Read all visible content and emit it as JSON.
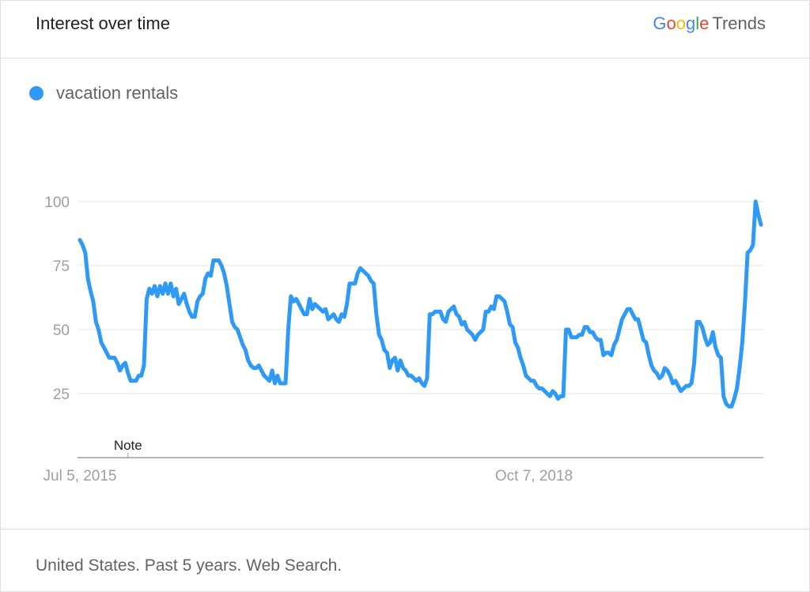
{
  "header": {
    "title": "Interest over time",
    "brand": {
      "google": [
        "G",
        "o",
        "o",
        "g",
        "l",
        "e"
      ],
      "product": "Trends"
    }
  },
  "legend": {
    "label": "vacation rentals"
  },
  "colors": {
    "series": "#2F9AF5",
    "grid": "#e6e6e6",
    "axis": "#9e9e9e",
    "tick_text": "#9e9e9e"
  },
  "chart_data": {
    "type": "line",
    "title": "Interest over time",
    "xlabel": "",
    "ylabel": "",
    "ylim": [
      0,
      100
    ],
    "yticks": [
      25,
      50,
      75,
      100
    ],
    "grid": true,
    "legend_placement": "top-left",
    "x_tick_labels": [
      {
        "label": "Jul 5, 2015",
        "index": 0
      },
      {
        "label": "Oct 7, 2018",
        "index": 170
      }
    ],
    "annotations": [
      {
        "label": "Note",
        "index": 18
      }
    ],
    "series": [
      {
        "name": "vacation rentals",
        "values": [
          85,
          83,
          80,
          70,
          65,
          61,
          53,
          50,
          45,
          43,
          41,
          39,
          39,
          39,
          37,
          34,
          36,
          37,
          33,
          30,
          30,
          30,
          32,
          32,
          36,
          62,
          66,
          64,
          67,
          63,
          67,
          64,
          68,
          64,
          68,
          63,
          66,
          60,
          62,
          64,
          60,
          57,
          55,
          55,
          61,
          63,
          64,
          70,
          72,
          71,
          77,
          77,
          77,
          75,
          72,
          67,
          60,
          53,
          51,
          50,
          47,
          44,
          42,
          38,
          36,
          35,
          35,
          36,
          34,
          32,
          31,
          30,
          34,
          29,
          32,
          29,
          29,
          29,
          50,
          63,
          61,
          62,
          60,
          58,
          56,
          56,
          62,
          58,
          60,
          59,
          58,
          57,
          58,
          54,
          55,
          56,
          54,
          53,
          56,
          55,
          60,
          68,
          68,
          68,
          72,
          74,
          73,
          72,
          71,
          69,
          68,
          56,
          48,
          46,
          42,
          41,
          35,
          38,
          39,
          34,
          38,
          35,
          34,
          32,
          32,
          31,
          30,
          31,
          29,
          28,
          31,
          56,
          56,
          57,
          57,
          57,
          54,
          53,
          57,
          58,
          59,
          56,
          55,
          52,
          53,
          50,
          49,
          48,
          46,
          48,
          49,
          50,
          57,
          57,
          59,
          58,
          63,
          63,
          62,
          61,
          57,
          52,
          51,
          45,
          43,
          39,
          36,
          32,
          31,
          30,
          30,
          28,
          27,
          27,
          26,
          25,
          24,
          26,
          25,
          23,
          24,
          24,
          50,
          50,
          47,
          47,
          47,
          48,
          48,
          51,
          51,
          49,
          49,
          47,
          46,
          46,
          40,
          41,
          41,
          40,
          44,
          46,
          50,
          54,
          56,
          58,
          58,
          56,
          54,
          54,
          50,
          46,
          45,
          40,
          36,
          34,
          33,
          31,
          32,
          35,
          34,
          32,
          29,
          30,
          28,
          26,
          27,
          28,
          28,
          29,
          37,
          53,
          53,
          51,
          47,
          44,
          45,
          49,
          43,
          40,
          39,
          24,
          21,
          20,
          20,
          23,
          27,
          35,
          45,
          60,
          80,
          81,
          83,
          100,
          95,
          91
        ]
      }
    ]
  },
  "footer": {
    "text": "United States. Past 5 years. Web Search."
  }
}
